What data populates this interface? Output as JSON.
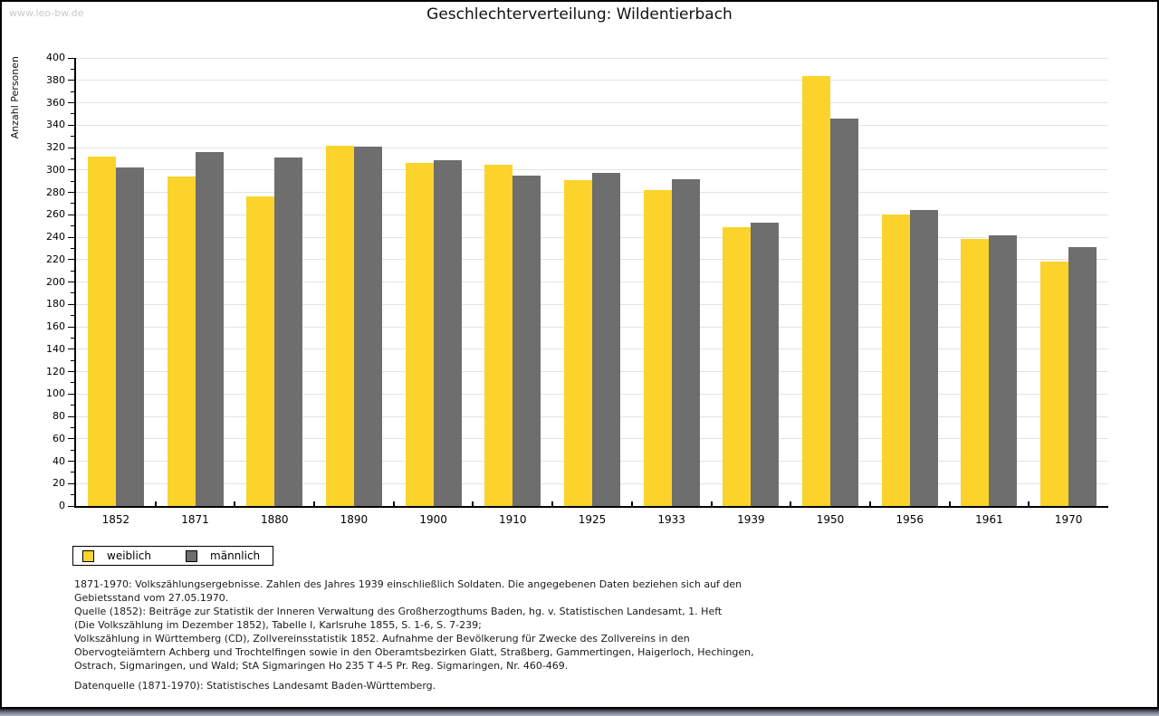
{
  "watermark": "www.leo-bw.de",
  "title": "Geschlechterverteilung: Wildentierbach",
  "chart_data": {
    "type": "bar",
    "title": "Geschlechterverteilung: Wildentierbach",
    "xlabel": "",
    "ylabel": "Anzahl Personen",
    "ylim": [
      0,
      400
    ],
    "ytick_step": 20,
    "yticks": [
      0,
      20,
      40,
      60,
      80,
      100,
      120,
      140,
      160,
      180,
      200,
      220,
      240,
      260,
      280,
      300,
      320,
      340,
      360,
      380,
      400
    ],
    "grid": true,
    "legend_position": "bottom-left",
    "categories": [
      "1852",
      "1871",
      "1880",
      "1890",
      "1900",
      "1910",
      "1925",
      "1933",
      "1939",
      "1950",
      "1956",
      "1961",
      "1970"
    ],
    "series": [
      {
        "name": "weiblich",
        "key": "weiblich",
        "color": "#fcd32b",
        "values": [
          312,
          294,
          276,
          322,
          306,
          305,
          291,
          282,
          249,
          384,
          260,
          238,
          218
        ]
      },
      {
        "name": "männlich",
        "key": "maennlich",
        "color": "#6e6e6e",
        "values": [
          302,
          316,
          311,
          321,
          309,
          295,
          297,
          292,
          253,
          346,
          264,
          242,
          231
        ]
      }
    ]
  },
  "legend": {
    "items": [
      {
        "label": "weiblich",
        "key": "weiblich",
        "color": "#fcd32b"
      },
      {
        "label": "männlich",
        "key": "maennlich",
        "color": "#6e6e6e"
      }
    ]
  },
  "notes": {
    "lines": [
      "1871-1970: Volkszählungsergebnisse. Zahlen des Jahres 1939 einschließlich Soldaten. Die angegebenen Daten beziehen sich auf den",
      "Gebietsstand vom 27.05.1970.",
      "Quelle (1852): Beiträge zur Statistik der Inneren Verwaltung des Großherzogthums Baden, hg. v. Statistischen Landesamt, 1. Heft",
      "(Die Volkszählung im Dezember 1852), Tabelle I, Karlsruhe 1855, S. 1-6, S. 7-239;",
      "Volkszählung in Württemberg (CD), Zollvereinsstatistik 1852. Aufnahme der Bevölkerung für Zwecke des Zollvereins in den",
      "Obervogteiämtern Achberg und Trochtelfingen sowie in den Oberamtsbezirken Glatt, Straßberg, Gammertingen, Haigerloch, Hechingen,",
      "Ostrach, Sigmaringen, und Wald; StA Sigmaringen Ho 235 T 4-5 Pr. Reg. Sigmaringen, Nr. 460-469."
    ],
    "datenquelle": "Datenquelle (1871-1970): Statistisches Landesamt Baden-Württemberg."
  },
  "colors": {
    "weiblich": "#fcd32b",
    "maennlich": "#6e6e6e",
    "gridline": "#e3e3e3",
    "axis": "#000000",
    "watermark": "#c9c9c9"
  }
}
